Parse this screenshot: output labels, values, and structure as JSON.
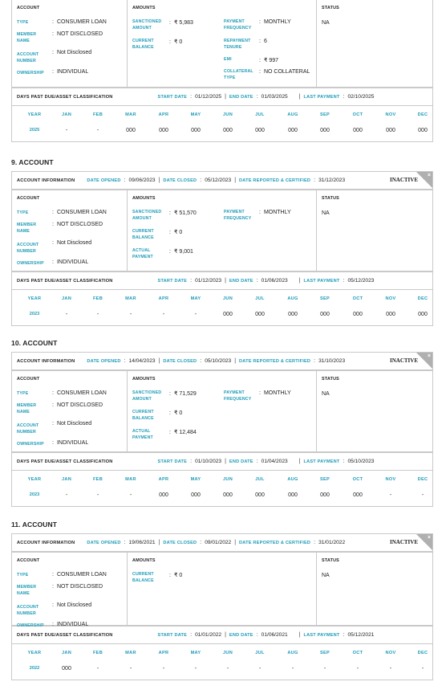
{
  "labels": {
    "account": "ACCOUNT",
    "amounts": "AMOUNTS",
    "status": "STATUS",
    "type": "TYPE",
    "member_name": "MEMBER NAME",
    "account_number": "ACCOUNT NUMBER",
    "ownership": "OWNERSHIP",
    "sanctioned_amount": "SANCTIONED AMOUNT",
    "current_balance": "CURRENT BALANCE",
    "actual_payment": "ACTUAL PAYMENT",
    "payment_frequency": "PAYMENT FREQUENCY",
    "repayment_tenure": "REPAYMENT TENURE",
    "emi": "EMI",
    "collateral_type": "COLLATERAL TYPE",
    "account_information": "ACCOUNT INFORMATION",
    "date_opened": "DATE OPENED",
    "date_closed": "DATE CLOSED",
    "date_reported": "DATE REPORTED & CERTIFIED",
    "dpd": "DAYS PAST DUE/ASSET CLASSIFICATION",
    "start_date": "START DATE",
    "end_date": "END DATE",
    "last_payment": "LAST PAYMENT",
    "inactive": "INACTIVE",
    "close_x": "×",
    "colon": ":",
    "sep": "|"
  },
  "months": [
    "YEAR",
    "JAN",
    "FEB",
    "MAR",
    "APR",
    "MAY",
    "JUN",
    "JUL",
    "AUG",
    "SEP",
    "OCT",
    "NOV",
    "DEC"
  ],
  "sections": [
    {
      "title": "",
      "type": "CONSUMER LOAN",
      "member_name": "NOT DISCLOSED",
      "account_number": "Not Disclosed",
      "ownership": "INDIVIDUAL",
      "sanctioned_amount": "₹ 5,983",
      "current_balance": "₹ 0",
      "payment_frequency": "MONTHLY",
      "repayment_tenure": "6",
      "emi": "₹ 997",
      "collateral_type": "NO COLLATERAL",
      "status": "NA",
      "start_date": "01/12/2025",
      "end_date": "01/03/2025",
      "last_payment": "02/10/2025",
      "history": [
        "2025",
        "-",
        "-",
        "000",
        "000",
        "000",
        "000",
        "000",
        "000",
        "000",
        "000",
        "000",
        "000"
      ]
    },
    {
      "title": "9. ACCOUNT",
      "date_opened": "09/06/2023",
      "date_closed": "05/12/2023",
      "date_reported": "31/12/2023",
      "type": "CONSUMER LOAN",
      "member_name": "NOT DISCLOSED",
      "account_number": "Not Disclosed",
      "ownership": "INDIVIDUAL",
      "sanctioned_amount": "₹ 51,570",
      "current_balance": "₹ 0",
      "actual_payment": "₹ 9,001",
      "payment_frequency": "MONTHLY",
      "status": "NA",
      "start_date": "01/12/2023",
      "end_date": "01/06/2023",
      "last_payment": "05/12/2023",
      "history": [
        "2023",
        "-",
        "-",
        "-",
        "-",
        "-",
        "000",
        "000",
        "000",
        "000",
        "000",
        "000",
        "000"
      ]
    },
    {
      "title": "10. ACCOUNT",
      "date_opened": "14/04/2023",
      "date_closed": "05/10/2023",
      "date_reported": "31/10/2023",
      "type": "CONSUMER LOAN",
      "member_name": "NOT DISCLOSED",
      "account_number": "Not Disclosed",
      "ownership": "INDIVIDUAL",
      "sanctioned_amount": "₹ 71,529",
      "current_balance": "₹ 0",
      "actual_payment": "₹ 12,484",
      "payment_frequency": "MONTHLY",
      "status": "NA",
      "start_date": "01/10/2023",
      "end_date": "01/04/2023",
      "last_payment": "05/10/2023",
      "history": [
        "2023",
        "-",
        "-",
        "-",
        "000",
        "000",
        "000",
        "000",
        "000",
        "000",
        "000",
        "-",
        "-"
      ]
    },
    {
      "title": "11. ACCOUNT",
      "date_opened": "19/06/2021",
      "date_closed": "09/01/2022",
      "date_reported": "31/01/2022",
      "type": "CONSUMER LOAN",
      "member_name": "NOT DISCLOSED",
      "account_number": "Not Disclosed",
      "ownership": "INDIVIDUAL",
      "current_balance": "₹ 0",
      "status": "NA",
      "start_date": "01/01/2022",
      "end_date": "01/06/2021",
      "last_payment": "05/12/2021",
      "history": [
        "2022",
        "000",
        "-",
        "-",
        "-",
        "-",
        "-",
        "-",
        "-",
        "-",
        "-",
        "-",
        "-"
      ]
    }
  ]
}
